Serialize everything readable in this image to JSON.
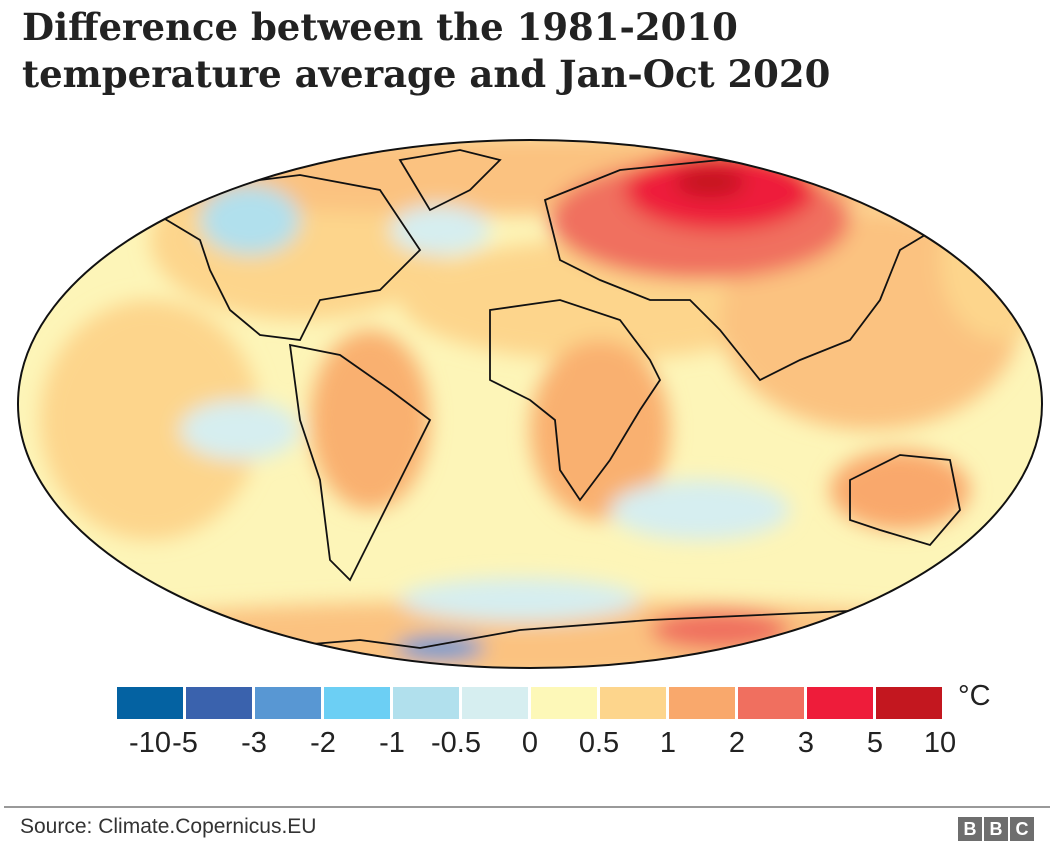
{
  "title_line1": "Difference between the 1981-2010",
  "title_line2": "temperature average and Jan-Oct 2020",
  "legend": {
    "unit": "°C",
    "ticks": [
      "-10",
      "-5",
      "-3",
      "-2",
      "-1",
      "-0.5",
      "0",
      "0.5",
      "1",
      "2",
      "3",
      "5",
      "10"
    ],
    "colors": [
      "#0462a2",
      "#3a62ad",
      "#5897d3",
      "#6ccff4",
      "#b1e0ed",
      "#d6eef0",
      "#fdf8b8",
      "#fdd58c",
      "#f9a86c",
      "#f06f5f",
      "#ee1c3a",
      "#c3171f"
    ]
  },
  "source": "Source: Climate.Copernicus.EU",
  "logo": [
    "B",
    "B",
    "C"
  ]
}
